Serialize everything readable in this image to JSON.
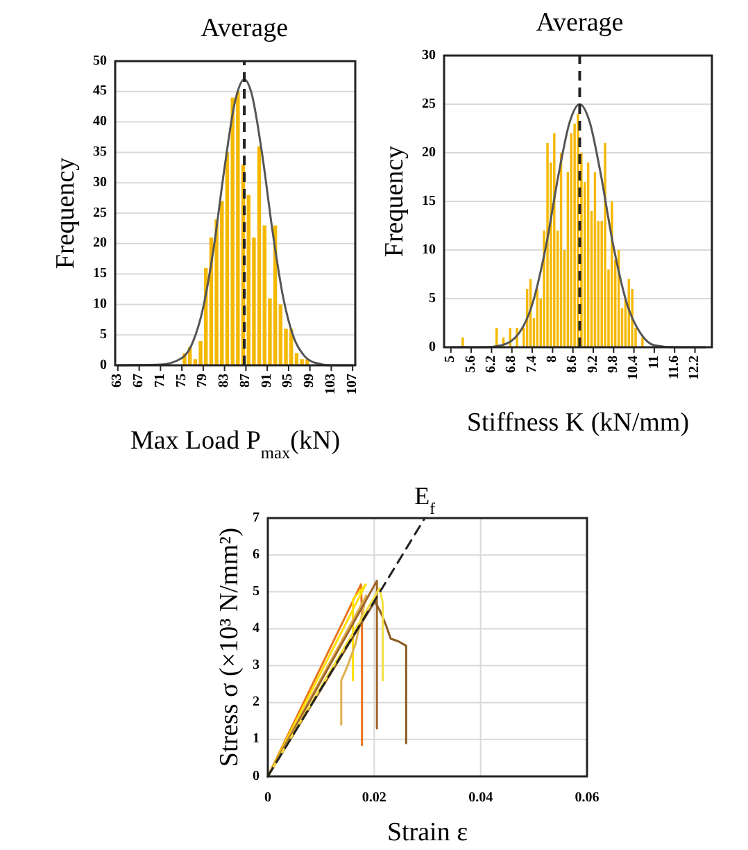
{
  "chart_data": [
    {
      "type": "histogram",
      "xlabel": "Max Load P$_{max}$(kN)",
      "ylabel": "Frequency",
      "color": "#f5b800",
      "bins": [
        75,
        76,
        77,
        78,
        79,
        80,
        81,
        82,
        83,
        84,
        85,
        86,
        87,
        88,
        89,
        90,
        91,
        92,
        93,
        94,
        95,
        96,
        97,
        98,
        99
      ],
      "values": [
        2,
        3,
        1,
        4,
        16,
        21,
        24,
        27,
        35,
        44,
        45,
        33,
        28,
        21,
        36,
        23,
        11,
        23,
        10,
        6,
        6,
        2,
        1,
        1
      ],
      "series": [
        {
          "type": "line",
          "color": "#555555",
          "x": [
            63,
            71,
            75,
            77,
            79,
            81,
            83,
            85,
            86.7,
            88,
            90,
            92,
            94,
            96,
            98,
            100,
            103,
            107
          ],
          "values": [
            0,
            0.1,
            1.2,
            3.7,
            9.5,
            19.5,
            32.5,
            43.5,
            47,
            44.9,
            35,
            22,
            11.1,
            4.5,
            1.5,
            0.4,
            0,
            0
          ]
        }
      ],
      "xlim": [
        62.5,
        107.5
      ],
      "xticks": [
        63,
        67,
        71,
        75,
        79,
        83,
        87,
        91,
        95,
        99,
        103,
        107
      ],
      "ylim": [
        0,
        50
      ],
      "yticks": [
        0,
        5,
        10,
        15,
        20,
        25,
        30,
        35,
        40,
        45,
        50
      ],
      "grid": "y",
      "ref_lines": [
        {
          "axis": "x",
          "value": 86.7,
          "label": "Average",
          "color": "#222222",
          "line_style": "dashed"
        }
      ]
    },
    {
      "type": "histogram",
      "xlabel": "Stiffness K (kN/mm)",
      "ylabel": "Frequency",
      "color": "#f5b800",
      "bins": [
        5.3,
        5.4,
        5.5,
        5.6,
        5.7,
        5.8,
        5.9,
        6.0,
        6.1,
        6.2,
        6.3,
        6.4,
        6.5,
        6.6,
        6.7,
        6.8,
        6.9,
        7.0,
        7.1,
        7.2,
        7.3,
        7.4,
        7.5,
        7.6,
        7.7,
        7.8,
        7.9,
        8.0,
        8.1,
        8.2,
        8.3,
        8.4,
        8.5,
        8.6,
        8.7,
        8.8,
        8.9,
        9.0,
        9.1,
        9.2,
        9.3,
        9.4,
        9.5,
        9.6,
        9.7,
        9.8,
        9.9,
        10.0,
        10.1,
        10.2,
        10.3,
        10.4,
        10.5,
        10.6,
        10.7
      ],
      "values": [
        1,
        0,
        0,
        0,
        0,
        0,
        0,
        0,
        0,
        0,
        2,
        0,
        1,
        0,
        2,
        0,
        2,
        0,
        2,
        6,
        7,
        3,
        6,
        5,
        12,
        21,
        19,
        22,
        12,
        20,
        10,
        18,
        22,
        23,
        24,
        20,
        17,
        19,
        14,
        18,
        13,
        13,
        21,
        8,
        15,
        9,
        10,
        4,
        5,
        7,
        6,
        2,
        0,
        1
      ],
      "series": [
        {
          "type": "line",
          "color": "#555555",
          "x": [
            5,
            6,
            6.5,
            7,
            7.4,
            7.8,
            8.2,
            8.5,
            8.8,
            9.1,
            9.4,
            9.8,
            10.2,
            10.6,
            11,
            11.6,
            12.5
          ],
          "values": [
            0,
            0,
            0.2,
            1.4,
            4.4,
            10.3,
            18.2,
            23.1,
            25,
            23.1,
            18.2,
            10.3,
            4.4,
            1.4,
            0.2,
            0,
            0
          ]
        }
      ],
      "xlim": [
        4.8,
        12.7
      ],
      "xticks": [
        5,
        5.6,
        6.2,
        6.8,
        7.4,
        8,
        8.6,
        9.2,
        9.8,
        10.4,
        11,
        11.6,
        12.2
      ],
      "ylim": [
        0,
        30
      ],
      "yticks": [
        0,
        5,
        10,
        15,
        20,
        25,
        30
      ],
      "grid": "y",
      "ref_lines": [
        {
          "axis": "x",
          "value": 8.8,
          "label": "Average",
          "color": "#222222",
          "line_style": "dashed"
        }
      ]
    },
    {
      "type": "line",
      "xlabel": "Strain ε",
      "ylabel": "Stress σ (×10³ N/mm²)",
      "series": [
        {
          "color": "#e8731a",
          "x": [
            0,
            0.0175,
            0.0177,
            0.0177
          ],
          "values": [
            0,
            5.2,
            4.4,
            0.85
          ]
        },
        {
          "color": "#ffe000",
          "x": [
            0,
            0.0184,
            0.016,
            0.016
          ],
          "values": [
            0,
            5.2,
            4.8,
            2.6
          ]
        },
        {
          "color": "#e0b050",
          "x": [
            0,
            0.0185,
            0.0165,
            0.015,
            0.0138,
            0.0138
          ],
          "values": [
            0,
            4.9,
            3.6,
            3.0,
            2.6,
            1.4
          ]
        },
        {
          "color": "#a0652a",
          "x": [
            0,
            0.0205,
            0.0205
          ],
          "values": [
            0,
            5.3,
            1.3
          ]
        },
        {
          "color": "#8b5a20",
          "x": [
            0,
            0.0201,
            0.0211,
            0.0222,
            0.0231,
            0.0244,
            0.026,
            0.026
          ],
          "values": [
            0,
            4.74,
            4.48,
            4.1,
            3.73,
            3.67,
            3.54,
            0.9
          ]
        },
        {
          "color": "#f5e040",
          "x": [
            0,
            0.021,
            0.0216,
            0.0216
          ],
          "values": [
            0,
            5.1,
            4.7,
            2.6
          ]
        },
        {
          "name": "E$_{f}$",
          "type": "line",
          "color": "#222222",
          "line_style": "dashed",
          "x": [
            0,
            0.0295
          ],
          "values": [
            0,
            7
          ]
        }
      ],
      "xlim": [
        0,
        0.06
      ],
      "xticks": [
        0,
        0.02,
        0.04,
        0.06
      ],
      "ylim": [
        0,
        7
      ],
      "yticks": [
        0,
        1,
        2,
        3,
        4,
        5,
        6,
        7
      ],
      "grid": true
    }
  ]
}
